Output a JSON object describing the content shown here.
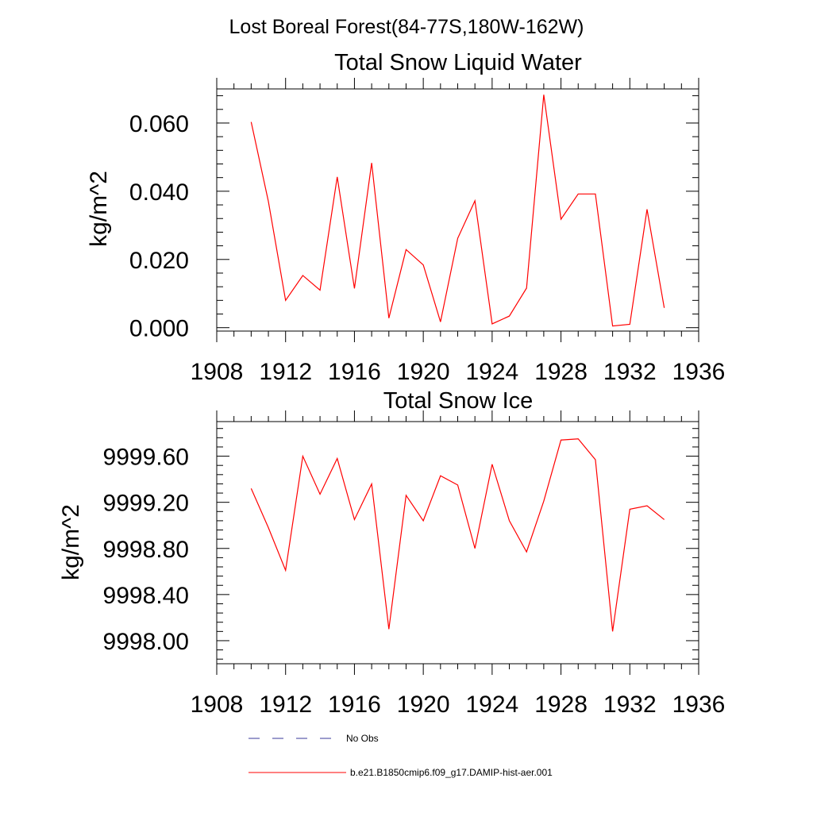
{
  "figure": {
    "title": "Lost Boreal Forest(84-77S,180W-162W)"
  },
  "legend": {
    "items": [
      {
        "label": "No Obs",
        "style": "dashed",
        "color": "#3a3a9a"
      },
      {
        "label": "b.e21.B1850cmip6.f09_g17.DAMIP-hist-aer.001",
        "style": "solid",
        "color": "#ff0000"
      }
    ]
  },
  "chart_data": [
    {
      "type": "line",
      "title": "Total Snow Liquid Water",
      "ylabel": "kg/m^2",
      "xlabel": "",
      "xlim": [
        1908,
        1936
      ],
      "ylim": [
        -0.001,
        0.07
      ],
      "x_ticks": [
        1908,
        1912,
        1916,
        1920,
        1924,
        1928,
        1932,
        1936
      ],
      "y_ticks": [
        0.0,
        0.02,
        0.04,
        0.06
      ],
      "y_tick_labels": [
        "0.000",
        "0.020",
        "0.040",
        "0.060"
      ],
      "grid": false,
      "series": [
        {
          "name": "b.e21.B1850cmip6.f09_g17.DAMIP-hist-aer.001",
          "color": "#ff0000",
          "x": [
            1910,
            1911,
            1912,
            1913,
            1914,
            1915,
            1916,
            1917,
            1918,
            1919,
            1920,
            1921,
            1922,
            1923,
            1924,
            1925,
            1926,
            1927,
            1928,
            1929,
            1930,
            1931,
            1932,
            1933,
            1934
          ],
          "y": [
            0.0603,
            0.037,
            0.008,
            0.0153,
            0.011,
            0.0442,
            0.0115,
            0.0483,
            0.0028,
            0.0229,
            0.0184,
            0.0017,
            0.0262,
            0.0372,
            0.0011,
            0.0034,
            0.0116,
            0.0683,
            0.0318,
            0.0392,
            0.0392,
            0.0005,
            0.001,
            0.0347,
            0.0058
          ]
        }
      ]
    },
    {
      "type": "line",
      "title": "Total Snow Ice",
      "ylabel": "kg/m^2",
      "xlabel": "",
      "xlim": [
        1908,
        1936
      ],
      "ylim": [
        9997.8,
        9999.9
      ],
      "x_ticks": [
        1908,
        1912,
        1916,
        1920,
        1924,
        1928,
        1932,
        1936
      ],
      "y_ticks": [
        9998.0,
        9998.4,
        9998.8,
        9999.2,
        9999.6
      ],
      "y_tick_labels": [
        "9998.00",
        "9998.40",
        "9998.80",
        "9999.20",
        "9999.60"
      ],
      "grid": false,
      "series": [
        {
          "name": "b.e21.B1850cmip6.f09_g17.DAMIP-hist-aer.001",
          "color": "#ff0000",
          "x": [
            1910,
            1911,
            1912,
            1913,
            1914,
            1915,
            1916,
            1917,
            1918,
            1919,
            1920,
            1921,
            1922,
            1923,
            1924,
            1925,
            1926,
            1927,
            1928,
            1929,
            1930,
            1931,
            1932,
            1933,
            1934
          ],
          "y": [
            9999.32,
            9998.98,
            9998.61,
            9999.6,
            9999.27,
            9999.58,
            9999.05,
            9999.36,
            9998.1,
            9999.26,
            9999.04,
            9999.43,
            9999.35,
            9998.8,
            9999.53,
            9999.04,
            9998.77,
            9999.21,
            9999.74,
            9999.75,
            9999.57,
            9998.08,
            9999.14,
            9999.17,
            9999.05
          ]
        }
      ]
    }
  ]
}
